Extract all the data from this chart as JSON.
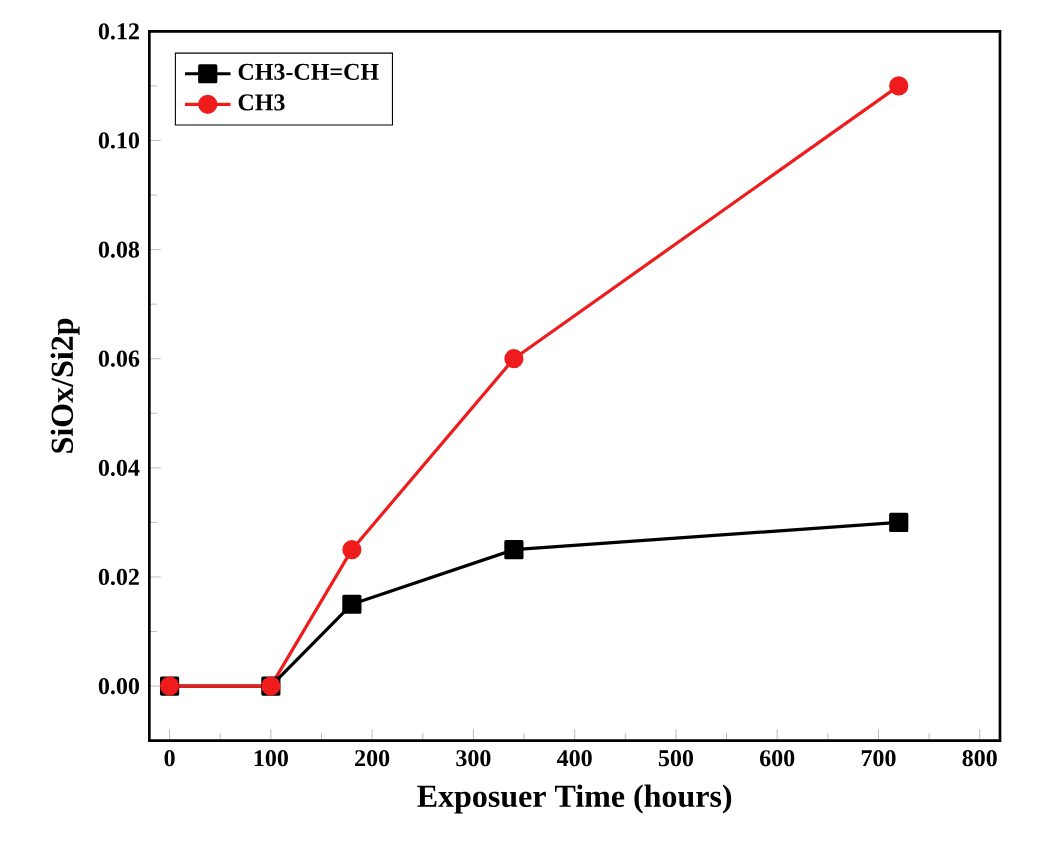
{
  "chart_data": {
    "type": "line",
    "xlabel": "Exposuer Time (hours)",
    "ylabel": "SiOx/Si2p",
    "xlim": [
      -20,
      820
    ],
    "ylim": [
      -0.01,
      0.12
    ],
    "xticks": [
      0,
      100,
      200,
      300,
      400,
      500,
      600,
      700,
      800
    ],
    "yticks": [
      {
        "value": 0,
        "label": "0.00"
      },
      {
        "value": 0.02,
        "label": "0.02"
      },
      {
        "value": 0.04,
        "label": "0.04"
      },
      {
        "value": 0.06,
        "label": "0.06"
      },
      {
        "value": 0.08,
        "label": "0.08"
      },
      {
        "value": 0.1,
        "label": "0.10"
      },
      {
        "value": 0.12,
        "label": "0.12"
      }
    ],
    "legend": "top left",
    "grid": false,
    "line_style": "solid",
    "series": [
      {
        "name": "CH3-CH=CH",
        "color": "#000000",
        "marker": "square",
        "x": [
          0,
          100,
          180,
          340,
          720
        ],
        "values": [
          0,
          0,
          0.015,
          0.025,
          0.03
        ]
      },
      {
        "name": "CH3",
        "color": "#ee1c1c",
        "marker": "circle",
        "x": [
          0,
          100,
          180,
          340,
          720
        ],
        "values": [
          0,
          0,
          0.025,
          0.06,
          0.11
        ]
      }
    ]
  }
}
